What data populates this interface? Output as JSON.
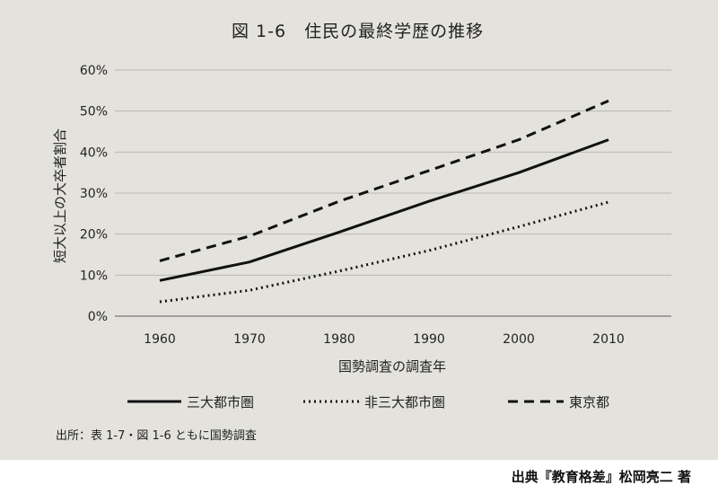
{
  "chart_data": {
    "type": "line",
    "title": "図 1-6　住民の最終学歴の推移",
    "xlabel": "国勢調査の調査年",
    "ylabel": "短大以上の大卒者割合",
    "x": [
      1960,
      1970,
      1980,
      1990,
      2000,
      2010
    ],
    "xlim": [
      1955,
      2017
    ],
    "ylim": [
      0,
      60
    ],
    "yticks": [
      "0%",
      "10%",
      "20%",
      "30%",
      "40%",
      "50%",
      "60%"
    ],
    "xticks": [
      "1960",
      "1970",
      "1980",
      "1990",
      "2000",
      "2010"
    ],
    "grid": true,
    "legend": "bottom",
    "series": [
      {
        "name": "三大都市圏",
        "style": "solid",
        "values": [
          8.7,
          13.2,
          20.5,
          28.0,
          35.0,
          43.0
        ]
      },
      {
        "name": "非三大都市圏",
        "style": "dotted",
        "values": [
          3.5,
          6.3,
          11.0,
          16.0,
          21.8,
          27.8
        ]
      },
      {
        "name": "東京都",
        "style": "dashed",
        "values": [
          13.5,
          19.5,
          28.0,
          35.5,
          43.0,
          52.5
        ]
      }
    ]
  },
  "source_note": "出所：表 1-7・図 1-6 ともに国勢調査",
  "credit": "出典『教育格差』松岡亮二 著"
}
